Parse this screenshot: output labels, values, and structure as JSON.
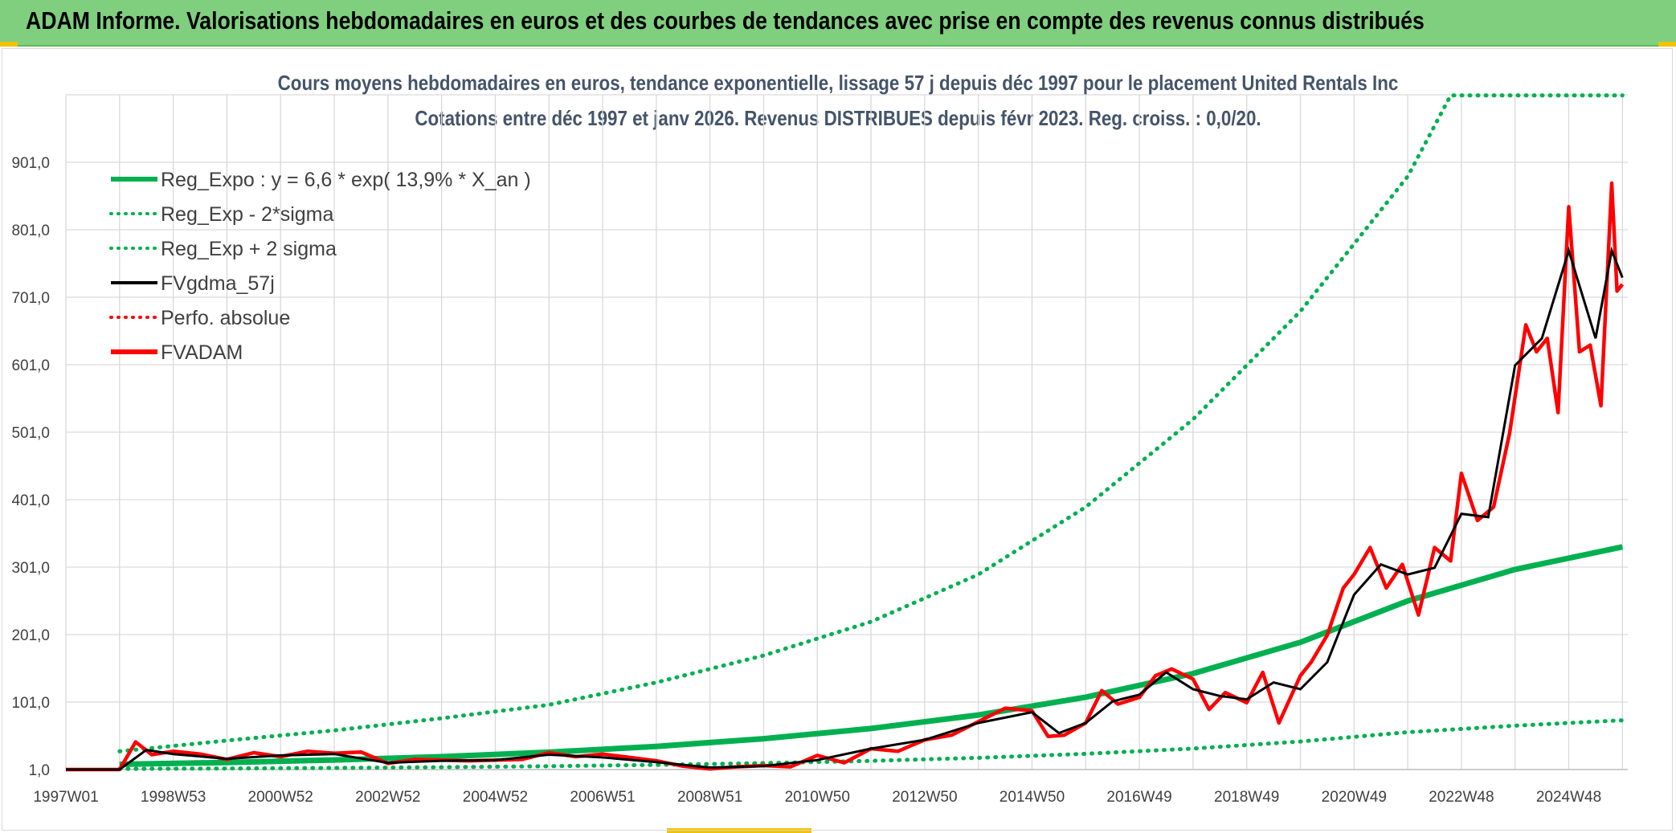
{
  "header": {
    "title": "ADAM Informe. Valorisations hebdomadaires en euros et des courbes de tendances avec prise en compte des revenus connus distribués"
  },
  "colors": {
    "header_bg": "#7fcf7f",
    "green": "#00b050",
    "red": "#ff0000",
    "black": "#000000",
    "grid": "#d9d9d9",
    "title": "#44546a"
  },
  "chart_data": {
    "type": "line",
    "title": "Cours moyens hebdomadaires en euros, tendance exponentielle, lissage 57 j depuis déc 1997 pour le placement United Rentals Inc",
    "subtitle": "Cotations entre déc 1997 et janv 2026. Revenus DISTRIBUES depuis févr 2023. Reg. croiss. : 0,0/20.",
    "xlabel": "",
    "ylabel": "",
    "xlim": [
      1997.0,
      2026.1
    ],
    "ylim": [
      1.0,
      1001.0
    ],
    "y_ticks": [
      "1,0",
      "101,0",
      "201,0",
      "301,0",
      "401,0",
      "501,0",
      "601,0",
      "701,0",
      "801,0",
      "901,0"
    ],
    "y_tick_values": [
      1,
      101,
      201,
      301,
      401,
      501,
      601,
      701,
      801,
      901
    ],
    "x_ticks": [
      "1997W01",
      "1998W53",
      "2000W52",
      "2002W52",
      "2004W52",
      "2006W51",
      "2008W51",
      "2010W50",
      "2012W50",
      "2014W50",
      "2016W49",
      "2018W49",
      "2020W49",
      "2022W48",
      "2024W48"
    ],
    "x_tick_values": [
      1997.0,
      1999.0,
      2001.0,
      2003.0,
      2005.0,
      2007.0,
      2009.0,
      2011.0,
      2013.0,
      2015.0,
      2017.0,
      2019.0,
      2021.0,
      2023.0,
      2025.0
    ],
    "legend_position": "top-left",
    "legend": [
      {
        "label": "Reg_Expo : y = 6,6 * exp( 13,9% *  X_an )",
        "color": "#00b050",
        "style": "solid-thick"
      },
      {
        "label": "Reg_Exp - 2*sigma",
        "color": "#00b050",
        "style": "dotted"
      },
      {
        "label": "Reg_Exp + 2 sigma",
        "color": "#00b050",
        "style": "dotted"
      },
      {
        "label": "FVgdma_57j",
        "color": "#000000",
        "style": "solid"
      },
      {
        "label": "Perfo. absolue",
        "color": "#ff0000",
        "style": "dotted"
      },
      {
        "label": "FVADAM",
        "color": "#ff0000",
        "style": "solid-thick"
      }
    ],
    "series": [
      {
        "name": "Reg_Expo",
        "x": [
          1998.0,
          2000.0,
          2002.0,
          2004.0,
          2006.0,
          2008.0,
          2010.0,
          2012.0,
          2014.0,
          2016.0,
          2018.0,
          2020.0,
          2022.0,
          2024.0,
          2026.0
        ],
        "values": [
          8.7,
          11.5,
          15.2,
          20.1,
          26.7,
          35.3,
          46.7,
          61.8,
          81.8,
          108.3,
          143.3,
          189.6,
          250.9,
          297.5,
          331.0
        ]
      },
      {
        "name": "Reg_Exp - 2*sigma",
        "x": [
          1998.0,
          2000.0,
          2002.0,
          2004.0,
          2006.0,
          2008.0,
          2010.0,
          2012.0,
          2014.0,
          2016.0,
          2018.0,
          2020.0,
          2022.0,
          2024.0,
          2026.0
        ],
        "values": [
          1.9,
          2.5,
          3.4,
          4.5,
          6.0,
          7.9,
          10.5,
          13.9,
          18.4,
          24.3,
          32.1,
          42.5,
          56.3,
          66.0,
          74.0
        ]
      },
      {
        "name": "Reg_Exp + 2 sigma",
        "x": [
          1998.0,
          2000.0,
          2002.0,
          2004.0,
          2006.0,
          2008.0,
          2010.0,
          2012.0,
          2014.0,
          2016.0,
          2018.0,
          2020.0,
          2022.0,
          2022.8,
          2024.0,
          2026.0
        ],
        "values": [
          28.0,
          44.0,
          59.0,
          77.0,
          97.0,
          130.0,
          170.0,
          220.0,
          290.0,
          390.0,
          520.0,
          680.0,
          880.0,
          1000.0,
          1000.0,
          1000.0
        ]
      },
      {
        "name": "FVgdma_57j",
        "x": [
          1997.0,
          1998.0,
          1998.5,
          1999.0,
          2000.0,
          2001.0,
          2002.0,
          2003.0,
          2004.0,
          2005.0,
          2006.0,
          2007.0,
          2008.0,
          2009.0,
          2010.0,
          2011.0,
          2012.0,
          2013.0,
          2014.0,
          2015.0,
          2015.5,
          2016.0,
          2016.5,
          2017.0,
          2017.5,
          2018.0,
          2018.5,
          2019.0,
          2019.5,
          2020.0,
          2020.5,
          2021.0,
          2021.5,
          2022.0,
          2022.5,
          2023.0,
          2023.5,
          2024.0,
          2024.5,
          2025.0,
          2025.5,
          2025.8,
          2026.0
        ],
        "values": [
          1.0,
          1.0,
          30.0,
          24.0,
          17.0,
          22.0,
          24.0,
          11.0,
          14.0,
          15.0,
          23.0,
          19.0,
          12.0,
          4.0,
          6.0,
          15.0,
          32.0,
          45.0,
          70.0,
          86.0,
          55.0,
          70.0,
          102.0,
          112.0,
          145.0,
          120.0,
          110.0,
          105.0,
          130.0,
          120.0,
          160.0,
          260.0,
          305.0,
          290.0,
          300.0,
          380.0,
          375.0,
          600.0,
          640.0,
          770.0,
          640.0,
          770.0,
          730.0
        ]
      },
      {
        "name": "FVADAM",
        "x": [
          1997.0,
          1998.0,
          1998.3,
          1998.6,
          1999.0,
          1999.5,
          2000.0,
          2000.5,
          2001.0,
          2001.5,
          2002.0,
          2002.5,
          2003.0,
          2003.5,
          2004.0,
          2004.5,
          2005.0,
          2005.5,
          2006.0,
          2006.5,
          2007.0,
          2007.5,
          2008.0,
          2008.5,
          2009.0,
          2009.5,
          2010.0,
          2010.5,
          2011.0,
          2011.5,
          2012.0,
          2012.5,
          2013.0,
          2013.5,
          2014.0,
          2014.5,
          2015.0,
          2015.3,
          2015.6,
          2016.0,
          2016.3,
          2016.6,
          2017.0,
          2017.3,
          2017.6,
          2018.0,
          2018.3,
          2018.6,
          2019.0,
          2019.3,
          2019.6,
          2020.0,
          2020.2,
          2020.5,
          2020.8,
          2021.0,
          2021.3,
          2021.6,
          2021.9,
          2022.2,
          2022.5,
          2022.8,
          2023.0,
          2023.3,
          2023.6,
          2023.9,
          2024.2,
          2024.4,
          2024.6,
          2024.8,
          2025.0,
          2025.2,
          2025.4,
          2025.6,
          2025.8,
          2025.9,
          2026.0
        ],
        "values": [
          1.0,
          1.0,
          42.0,
          23.0,
          28.0,
          24.0,
          16.0,
          26.0,
          20.0,
          28.0,
          25.0,
          27.0,
          10.0,
          16.0,
          15.0,
          14.0,
          15.0,
          16.0,
          26.0,
          20.0,
          24.0,
          19.0,
          14.0,
          6.0,
          2.0,
          5.0,
          7.0,
          5.0,
          22.0,
          11.0,
          32.0,
          28.0,
          45.0,
          52.0,
          72.0,
          92.0,
          88.0,
          50.0,
          52.0,
          70.0,
          118.0,
          98.0,
          108.0,
          140.0,
          150.0,
          135.0,
          90.0,
          115.0,
          100.0,
          145.0,
          70.0,
          140.0,
          160.0,
          200.0,
          270.0,
          290.0,
          330.0,
          270.0,
          305.0,
          230.0,
          330.0,
          310.0,
          440.0,
          370.0,
          390.0,
          500.0,
          660.0,
          620.0,
          640.0,
          530.0,
          835.0,
          620.0,
          630.0,
          540.0,
          870.0,
          710.0,
          720.0
        ]
      }
    ]
  }
}
